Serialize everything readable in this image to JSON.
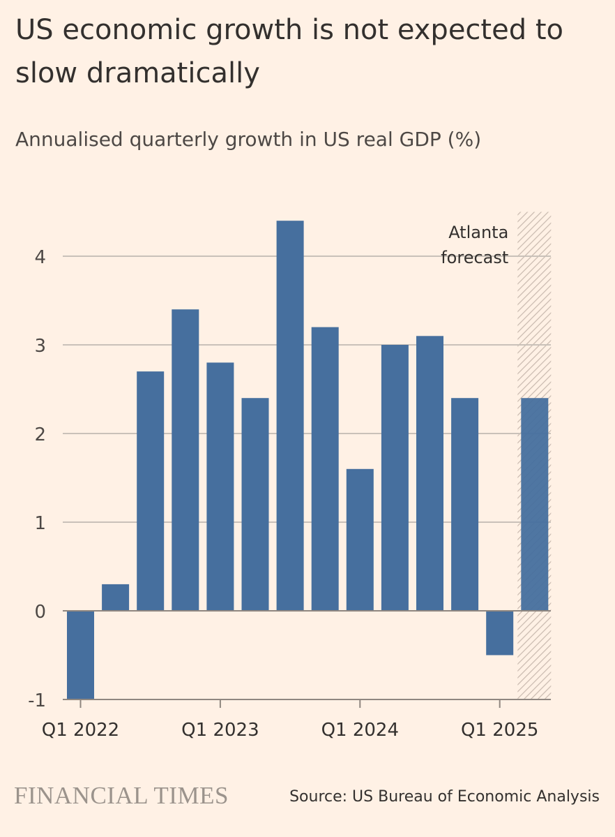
{
  "title": "US economic growth is not expected to slow dramatically",
  "subtitle": "Annualised quarterly growth in US real GDP (%)",
  "brand": "FINANCIAL TIMES",
  "source": "Source: US Bureau of Economic Analysis",
  "chart_data": {
    "type": "bar",
    "categories": [
      "Q1 2022",
      "Q2 2022",
      "Q3 2022",
      "Q4 2022",
      "Q1 2023",
      "Q2 2023",
      "Q3 2023",
      "Q4 2023",
      "Q1 2024",
      "Q2 2024",
      "Q3 2024",
      "Q4 2024",
      "Q1 2025",
      "Q2 2025"
    ],
    "values": [
      -1.0,
      0.3,
      2.7,
      3.4,
      2.8,
      2.4,
      4.4,
      3.2,
      1.6,
      3.0,
      3.1,
      2.4,
      -0.5,
      2.4
    ],
    "ylim": [
      -1,
      4.5
    ],
    "yticks": [
      -1,
      0,
      1,
      2,
      3,
      4
    ],
    "xtick_labels": [
      "Q1 2022",
      "Q1 2023",
      "Q1 2024",
      "Q1 2025"
    ],
    "annotation": {
      "lines": [
        "Atlanta",
        "forecast"
      ],
      "category": "Q2 2025"
    },
    "colors": {
      "bar": "#466f9e",
      "grid": "#c9c1b9",
      "hatch": "#c8b9ae",
      "background": "#fff1e5"
    }
  }
}
